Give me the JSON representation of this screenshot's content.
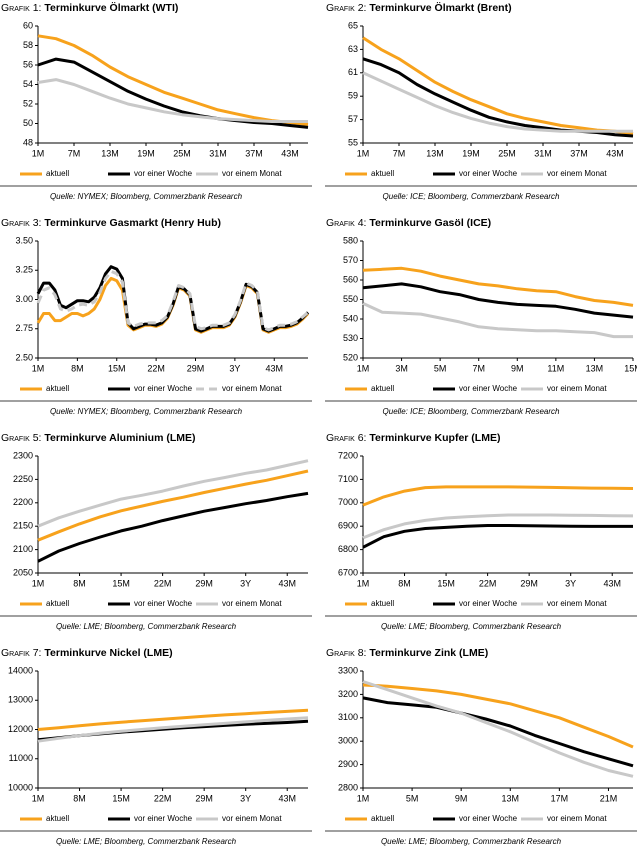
{
  "chart_data": [
    {
      "type": "line",
      "label": "Grafik 1:",
      "title": "Terminkurve Ölmarkt (WTI)",
      "source": "Quelle: NYMEX; Bloomberg, Commerzbank Research",
      "categories": [
        "1M",
        null,
        "7M",
        null,
        "13M",
        null,
        "19M",
        null,
        "25M",
        null,
        "31M",
        null,
        "37M",
        null,
        "43M",
        null
      ],
      "ylim": [
        48,
        60
      ],
      "yticks": [
        48,
        50,
        52,
        54,
        56,
        58,
        60
      ],
      "series": [
        {
          "name": "aktuell",
          "color": "#f7a21c",
          "values": [
            59,
            58.7,
            58,
            57,
            55.8,
            54.8,
            54,
            53.2,
            52.6,
            52,
            51.4,
            51,
            50.6,
            50.3,
            50.1,
            49.9
          ]
        },
        {
          "name": "vor einer Woche",
          "color": "#000000",
          "values": [
            56,
            56.6,
            56.3,
            55.3,
            54.3,
            53.3,
            52.5,
            51.8,
            51.2,
            50.8,
            50.5,
            50.3,
            50.1,
            50,
            49.8,
            49.6
          ]
        },
        {
          "name": "vor einem Monat",
          "color": "#c8c8c8",
          "values": [
            54.2,
            54.5,
            54,
            53.3,
            52.6,
            52,
            51.6,
            51.2,
            50.9,
            50.7,
            50.5,
            50.4,
            50.3,
            50.2,
            50.2,
            50.2
          ]
        }
      ]
    },
    {
      "type": "line",
      "label": "Grafik 2:",
      "title": "Terminkurve Ölmarkt (Brent)",
      "source": "Quelle: ICE; Bloomberg, Commerzbank Research",
      "categories": [
        "1M",
        null,
        "7M",
        null,
        "13M",
        null,
        "19M",
        null,
        "25M",
        null,
        "31M",
        null,
        "37M",
        null,
        "43M",
        null
      ],
      "ylim": [
        55,
        65
      ],
      "yticks": [
        55,
        57,
        59,
        61,
        63,
        65
      ],
      "series": [
        {
          "name": "aktuell",
          "color": "#f7a21c",
          "values": [
            64,
            63,
            62.2,
            61.2,
            60.2,
            59.4,
            58.7,
            58.1,
            57.5,
            57.1,
            56.8,
            56.5,
            56.3,
            56.1,
            56,
            55.8
          ]
        },
        {
          "name": "vor einer Woche",
          "color": "#000000",
          "values": [
            62.2,
            61.7,
            61,
            60,
            59.2,
            58.5,
            57.8,
            57.2,
            56.8,
            56.5,
            56.3,
            56.1,
            56,
            55.9,
            55.7,
            55.6
          ]
        },
        {
          "name": "vor einem Monat",
          "color": "#c8c8c8",
          "values": [
            61,
            60.3,
            59.6,
            58.9,
            58.2,
            57.6,
            57.1,
            56.7,
            56.4,
            56.2,
            56.1,
            56,
            56,
            56,
            56,
            56
          ]
        }
      ]
    },
    {
      "type": "line",
      "label": "Grafik 3:",
      "title": "Terminkurve Gasmarkt (Henry Hub)",
      "source": "Quelle: NYMEX; Bloomberg, Commerzbank Research",
      "categories": [
        "1M",
        null,
        null,
        null,
        null,
        null,
        null,
        "8M",
        null,
        null,
        null,
        null,
        null,
        null,
        "15M",
        null,
        null,
        null,
        null,
        null,
        null,
        "22M",
        null,
        null,
        null,
        null,
        null,
        null,
        "29M",
        null,
        null,
        null,
        null,
        null,
        null,
        "3Y",
        null,
        null,
        null,
        null,
        null,
        null,
        "43M",
        null,
        null,
        null,
        null,
        null,
        null
      ],
      "ylim": [
        2.5,
        3.5
      ],
      "yticks": [
        {
          "value": 2.5,
          "label": "2.50"
        },
        {
          "value": 2.75,
          "label": "2.75"
        },
        {
          "value": 3,
          "label": "3.00"
        },
        {
          "value": 3.25,
          "label": "3.25"
        },
        {
          "value": 3.5,
          "label": "3.50"
        }
      ],
      "series": [
        {
          "name": "aktuell",
          "color": "#f7a21c",
          "values": [
            2.8,
            2.88,
            2.88,
            2.82,
            2.82,
            2.85,
            2.88,
            2.88,
            2.86,
            2.88,
            2.92,
            3.0,
            3.12,
            3.18,
            3.16,
            3.08,
            2.78,
            2.74,
            2.76,
            2.78,
            2.78,
            2.77,
            2.79,
            2.84,
            2.95,
            3.1,
            3.08,
            3.03,
            2.74,
            2.72,
            2.74,
            2.76,
            2.76,
            2.76,
            2.78,
            2.85,
            2.97,
            3.12,
            3.1,
            3.05,
            2.74,
            2.72,
            2.74,
            2.76,
            2.76,
            2.77,
            2.79,
            2.83,
            2.88
          ]
        },
        {
          "name": "vor einer Woche",
          "color": "#000000",
          "values": [
            3.05,
            3.14,
            3.14,
            3.08,
            2.95,
            2.93,
            2.96,
            2.99,
            2.99,
            2.98,
            3.02,
            3.1,
            3.22,
            3.28,
            3.26,
            3.18,
            2.8,
            2.75,
            2.77,
            2.79,
            2.79,
            2.78,
            2.8,
            2.85,
            2.96,
            3.11,
            3.09,
            3.04,
            2.75,
            2.73,
            2.75,
            2.77,
            2.77,
            2.77,
            2.79,
            2.86,
            2.98,
            3.13,
            3.11,
            3.06,
            2.75,
            2.73,
            2.75,
            2.77,
            2.77,
            2.78,
            2.8,
            2.84,
            2.89
          ]
        },
        {
          "name": "vor einem Monat",
          "color": "#c8c8c8",
          "line_style": "dashed",
          "values": [
            2.97,
            3.08,
            3.1,
            3.04,
            2.92,
            2.9,
            2.92,
            2.95,
            2.96,
            2.95,
            2.98,
            3.06,
            3.18,
            3.24,
            3.22,
            3.15,
            2.8,
            2.77,
            2.79,
            2.8,
            2.8,
            2.8,
            2.82,
            2.86,
            2.98,
            3.12,
            3.1,
            3.05,
            2.77,
            2.75,
            2.76,
            2.78,
            2.78,
            2.78,
            2.8,
            2.87,
            2.99,
            3.14,
            3.12,
            3.07,
            2.76,
            2.74,
            2.76,
            2.78,
            2.78,
            2.79,
            2.81,
            2.85,
            2.89
          ]
        }
      ]
    },
    {
      "type": "line",
      "label": "Grafik 4:",
      "title": "Terminkurve Gasöl (ICE)",
      "source": "Quelle: ICE; Bloomberg, Commerzbank Research",
      "categories": [
        "1M",
        null,
        "3M",
        null,
        "5M",
        null,
        "7M",
        null,
        "9M",
        null,
        "11M",
        null,
        "13M",
        null,
        "15M"
      ],
      "ylim": [
        520,
        580
      ],
      "yticks": [
        520,
        530,
        540,
        550,
        560,
        570,
        580
      ],
      "series": [
        {
          "name": "aktuell",
          "color": "#f7a21c",
          "values": [
            565,
            565.5,
            566,
            564.5,
            562,
            560,
            558,
            557,
            555.5,
            554.5,
            554,
            551.5,
            549.5,
            548.5,
            547
          ]
        },
        {
          "name": "vor einer Woche",
          "color": "#000000",
          "values": [
            556,
            557,
            558,
            556.5,
            554,
            552.5,
            550,
            548.5,
            547.5,
            547,
            546.5,
            545,
            543,
            542,
            541
          ]
        },
        {
          "name": "vor einem Monat",
          "color": "#c8c8c8",
          "values": [
            548,
            543.5,
            543,
            542.5,
            540.5,
            538.5,
            536,
            535,
            534.5,
            534,
            534,
            533.5,
            533,
            531,
            531
          ]
        }
      ]
    },
    {
      "type": "line",
      "label": "Grafik 5:",
      "title": "Terminkurve Aluminium (LME)",
      "source": "Quelle: LME; Bloomberg, Commerzbank Research",
      "categories": [
        "1M",
        null,
        "8M",
        null,
        "15M",
        null,
        "22M",
        null,
        "29M",
        null,
        "3Y",
        null,
        "43M",
        null
      ],
      "ylim": [
        2050,
        2300
      ],
      "yticks": [
        2050,
        2100,
        2150,
        2200,
        2250,
        2300
      ],
      "series": [
        {
          "name": "aktuell",
          "color": "#f7a21c",
          "values": [
            2120,
            2138,
            2155,
            2170,
            2183,
            2193,
            2203,
            2212,
            2222,
            2231,
            2240,
            2248,
            2258,
            2268
          ]
        },
        {
          "name": "vor einer Woche",
          "color": "#000000",
          "values": [
            2075,
            2097,
            2113,
            2127,
            2140,
            2150,
            2162,
            2172,
            2182,
            2190,
            2198,
            2205,
            2213,
            2220
          ]
        },
        {
          "name": "vor einem Monat",
          "color": "#c8c8c8",
          "values": [
            2150,
            2168,
            2182,
            2195,
            2208,
            2216,
            2225,
            2236,
            2246,
            2254,
            2263,
            2270,
            2280,
            2290
          ]
        }
      ]
    },
    {
      "type": "line",
      "label": "Grafik 6:",
      "title": "Terminkurve Kupfer (LME)",
      "source": "Quelle: LME; Bloomberg, Commerzbank Research",
      "categories": [
        "1M",
        null,
        "8M",
        null,
        "15M",
        null,
        "22M",
        null,
        "29M",
        null,
        "3Y",
        null,
        "43M",
        null
      ],
      "ylim": [
        6700,
        7200
      ],
      "yticks": [
        6700,
        6800,
        6900,
        7000,
        7100,
        7200
      ],
      "series": [
        {
          "name": "aktuell",
          "color": "#f7a21c",
          "values": [
            6990,
            7025,
            7050,
            7065,
            7068,
            7068,
            7068,
            7068,
            7067,
            7066,
            7064,
            7063,
            7062,
            7061
          ]
        },
        {
          "name": "vor einer Woche",
          "color": "#000000",
          "values": [
            6810,
            6855,
            6878,
            6890,
            6895,
            6900,
            6903,
            6903,
            6902,
            6901,
            6900,
            6899,
            6899,
            6899
          ]
        },
        {
          "name": "vor einem Monat",
          "color": "#c8c8c8",
          "values": [
            6850,
            6885,
            6910,
            6925,
            6935,
            6940,
            6945,
            6948,
            6948,
            6948,
            6947,
            6946,
            6945,
            6944
          ]
        }
      ]
    },
    {
      "type": "line",
      "label": "Grafik 7:",
      "title": "Terminkurve Nickel (LME)",
      "source": "Quelle: LME; Bloomberg, Commerzbank Research",
      "categories": [
        "1M",
        null,
        "8M",
        null,
        "15M",
        null,
        "22M",
        null,
        "29M",
        null,
        "3Y",
        null,
        "43M",
        null
      ],
      "ylim": [
        10000,
        14000
      ],
      "yticks": [
        10000,
        11000,
        12000,
        13000,
        14000
      ],
      "series": [
        {
          "name": "aktuell",
          "color": "#f7a21c",
          "values": [
            12000,
            12060,
            12130,
            12190,
            12250,
            12300,
            12350,
            12400,
            12450,
            12500,
            12540,
            12580,
            12620,
            12660
          ]
        },
        {
          "name": "vor einer Woche",
          "color": "#000000",
          "values": [
            11650,
            11720,
            11790,
            11850,
            11910,
            11960,
            12010,
            12060,
            12100,
            12140,
            12180,
            12210,
            12240,
            12280
          ]
        },
        {
          "name": "vor einem Monat",
          "color": "#c8c8c8",
          "values": [
            11600,
            11700,
            11790,
            11870,
            11940,
            12000,
            12060,
            12110,
            12160,
            12210,
            12260,
            12310,
            12360,
            12400
          ]
        }
      ]
    },
    {
      "type": "line",
      "label": "Grafik 8:",
      "title": "Terminkurve Zink (LME)",
      "source": "Quelle: LME; Bloomberg, Commerzbank Research",
      "categories": [
        "1M",
        null,
        "5M",
        null,
        "9M",
        null,
        "13M",
        null,
        "17M",
        null,
        "21M",
        null
      ],
      "ylim": [
        2800,
        3300
      ],
      "yticks": [
        2800,
        2900,
        3000,
        3100,
        3200,
        3300
      ],
      "series": [
        {
          "name": "aktuell",
          "color": "#f7a21c",
          "values": [
            3240,
            3235,
            3225,
            3215,
            3200,
            3180,
            3160,
            3130,
            3100,
            3060,
            3020,
            2975
          ]
        },
        {
          "name": "vor einer Woche",
          "color": "#000000",
          "values": [
            3185,
            3165,
            3155,
            3145,
            3120,
            3095,
            3065,
            3025,
            2990,
            2955,
            2925,
            2895
          ]
        },
        {
          "name": "vor einem Monat",
          "color": "#c8c8c8",
          "values": [
            3255,
            3220,
            3185,
            3150,
            3120,
            3080,
            3040,
            2995,
            2950,
            2910,
            2875,
            2850
          ]
        }
      ]
    }
  ]
}
